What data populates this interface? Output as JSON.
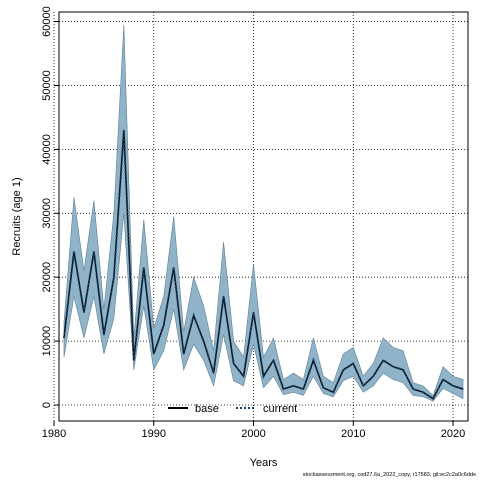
{
  "chart_data": {
    "type": "line",
    "xlabel": "Years",
    "ylabel": "Recruits (age 1)",
    "xlim": [
      1980.5,
      2021.5
    ],
    "ylim": [
      -2500,
      61500
    ],
    "xticks": [
      1980,
      1990,
      2000,
      2010,
      2020
    ],
    "yticks": [
      0,
      10000,
      20000,
      30000,
      40000,
      50000,
      60000
    ],
    "grid": true,
    "legend_position": "bottom-center",
    "colors": {
      "band": "#8fb4c9",
      "band_edge": "#5f7f93",
      "current": "#1a3d5c",
      "base": "#000000"
    },
    "x": [
      1981,
      1982,
      1983,
      1984,
      1985,
      1986,
      1987,
      1988,
      1989,
      1990,
      1991,
      1992,
      1993,
      1994,
      1995,
      1996,
      1997,
      1998,
      1999,
      2000,
      2001,
      2002,
      2003,
      2004,
      2005,
      2006,
      2007,
      2008,
      2009,
      2010,
      2011,
      2012,
      2013,
      2014,
      2015,
      2016,
      2017,
      2018,
      2019,
      2020,
      2021
    ],
    "series": [
      {
        "name": "base",
        "style": "solid",
        "values": [
          10500,
          24000,
          14500,
          24000,
          11000,
          20000,
          43000,
          7000,
          21500,
          8000,
          12500,
          21500,
          8000,
          14000,
          10000,
          5000,
          17000,
          6500,
          4500,
          14500,
          4500,
          7000,
          2500,
          3000,
          2500,
          7000,
          2700,
          2000,
          5500,
          6500,
          3000,
          4500,
          7000,
          6000,
          5500,
          2500,
          2000,
          1000,
          4000,
          3000,
          2500
        ]
      },
      {
        "name": "current",
        "style": "dashed",
        "values": [
          10500,
          24000,
          14500,
          24000,
          11000,
          20000,
          43000,
          7000,
          21500,
          8000,
          12500,
          21500,
          8000,
          14000,
          10000,
          5000,
          17000,
          6500,
          4500,
          14500,
          4500,
          7000,
          2500,
          3000,
          2500,
          7000,
          2700,
          2000,
          5500,
          6500,
          3000,
          4500,
          7000,
          6000,
          5500,
          2500,
          2000,
          1000,
          4000,
          3000,
          2500
        ]
      }
    ],
    "band_upper": [
      13000,
      32500,
      21000,
      32000,
      15000,
      30000,
      59500,
      10500,
      29000,
      12000,
      17000,
      29500,
      11500,
      20000,
      15500,
      8500,
      25500,
      10000,
      7500,
      22000,
      7500,
      10500,
      4000,
      5000,
      4000,
      10500,
      4500,
      3500,
      8000,
      9000,
      4500,
      6500,
      10500,
      9000,
      8500,
      3500,
      3000,
      1500,
      6000,
      4500,
      4000
    ],
    "band_lower": [
      7500,
      17000,
      10500,
      17000,
      8000,
      13500,
      30000,
      5500,
      15500,
      5500,
      8500,
      15000,
      5500,
      9500,
      7000,
      3000,
      11000,
      3800,
      3000,
      9500,
      2700,
      4500,
      1600,
      2000,
      1500,
      4500,
      1800,
      1300,
      3800,
      4500,
      2000,
      3000,
      5000,
      4000,
      3500,
      1500,
      1300,
      600,
      2600,
      1800,
      1000
    ],
    "legend": [
      "base",
      "current"
    ]
  },
  "footer_text": "stockassessment.org, cod27.6a_2022_copy, r17583, git:ec2c2a0c6dde"
}
